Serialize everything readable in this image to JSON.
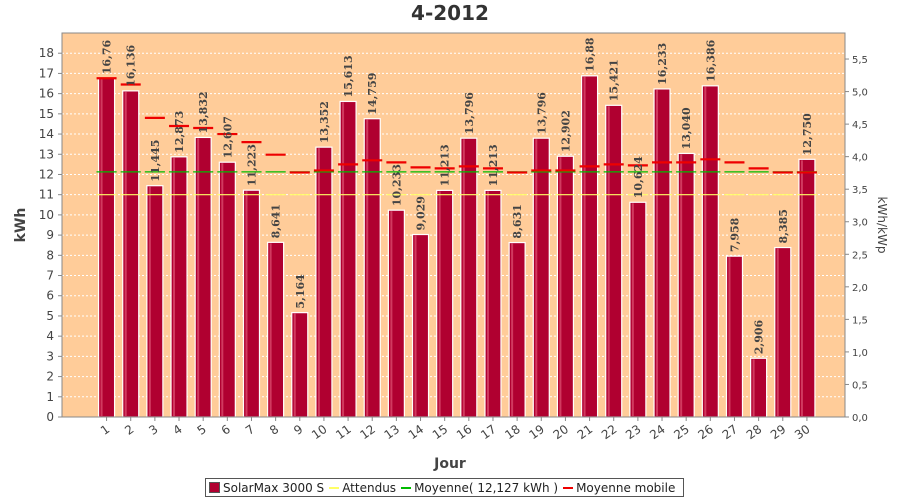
{
  "chart_data": {
    "type": "bar",
    "title": "4-2012",
    "xlabel": "Jour",
    "ylabel": "kWh",
    "ylabel_right": "kWh/kWp",
    "ylim": [
      0,
      19
    ],
    "yticks": [
      0,
      1,
      2,
      3,
      4,
      5,
      6,
      7,
      8,
      9,
      10,
      11,
      12,
      13,
      14,
      15,
      16,
      17,
      18
    ],
    "ylim_right": [
      0,
      5.9
    ],
    "yticks_right": [
      "0,0",
      "0,5",
      "1,0",
      "1,5",
      "2,0",
      "2,5",
      "3,0",
      "3,5",
      "4,0",
      "4,5",
      "5,0",
      "5,5"
    ],
    "categories": [
      "1",
      "2",
      "3",
      "4",
      "5",
      "6",
      "7",
      "8",
      "9",
      "10",
      "11",
      "12",
      "13",
      "14",
      "15",
      "16",
      "17",
      "18",
      "19",
      "20",
      "21",
      "22",
      "23",
      "24",
      "25",
      "26",
      "27",
      "28",
      "29",
      "30"
    ],
    "background_color": "#ffcc99",
    "grid": true,
    "legend_position": "bottom",
    "series": [
      {
        "name": "SolarMax 3000 S",
        "kind": "bar",
        "color": "#b00030",
        "values": [
          16.76,
          16.136,
          11.445,
          12.873,
          13.832,
          12.607,
          11.223,
          8.641,
          5.164,
          13.352,
          15.613,
          14.759,
          10.233,
          9.029,
          11.213,
          13.796,
          11.213,
          8.631,
          13.796,
          12.902,
          16.88,
          15.421,
          10.624,
          16.233,
          13.04,
          16.386,
          7.958,
          2.906,
          8.385,
          12.75
        ],
        "labels": [
          "16,76",
          "16,136",
          "11,445",
          "12,873",
          "13,832",
          "12,607",
          "11,223",
          "8,641",
          "5,164",
          "13,352",
          "15,613",
          "14,759",
          "10,233",
          "9,029",
          "11,213",
          "13,796",
          "11,213",
          "8,631",
          "13,796",
          "12,902",
          "16,88",
          "15,421",
          "10,624",
          "16,233",
          "13,040",
          "16,386",
          "7,958",
          "2,906",
          "8,385",
          "12,750"
        ]
      },
      {
        "name": "Attendus",
        "kind": "line",
        "color": "#ffff66",
        "values": [
          11.0,
          11.0,
          11.0,
          11.0,
          11.0,
          11.0,
          11.0,
          11.0,
          11.0,
          11.0,
          11.0,
          11.0,
          11.0,
          11.0,
          11.0,
          11.0,
          11.0,
          11.0,
          11.0,
          11.0,
          11.0,
          11.0,
          11.0,
          11.0,
          11.0,
          11.0,
          11.0,
          11.0,
          11.0,
          11.0
        ]
      },
      {
        "name": "Moyenne( 12,127 kWh )",
        "kind": "line",
        "color": "#00bb00",
        "values": [
          12.127,
          12.127,
          12.127,
          12.127,
          12.127,
          12.127,
          12.127,
          12.127,
          12.127,
          12.127,
          12.127,
          12.127,
          12.127,
          12.127,
          12.127,
          12.127,
          12.127,
          12.127,
          12.127,
          12.127,
          12.127,
          12.127,
          12.127,
          12.127,
          12.127,
          12.127,
          12.127,
          12.127,
          12.127,
          12.127
        ]
      },
      {
        "name": "Moyenne mobile",
        "kind": "dash",
        "color": "#ee0000",
        "values": [
          16.76,
          16.45,
          14.8,
          14.4,
          14.3,
          14.0,
          13.6,
          12.98,
          12.1,
          12.2,
          12.5,
          12.7,
          12.6,
          12.35,
          12.3,
          12.4,
          12.3,
          12.1,
          12.2,
          12.2,
          12.4,
          12.5,
          12.45,
          12.6,
          12.6,
          12.75,
          12.6,
          12.3,
          12.1,
          12.1
        ]
      }
    ]
  }
}
